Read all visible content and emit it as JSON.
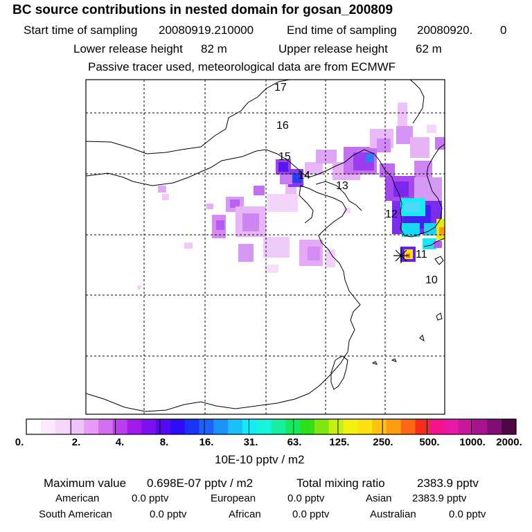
{
  "header": {
    "title": "BC  source contributions in nested domain for gosan_200809",
    "start_label": "Start time of sampling",
    "start_value": "20080919.210000",
    "end_label": "End time of sampling",
    "end_value": "20080920.",
    "end_suffix": "0",
    "lower_label": "Lower release height",
    "lower_value": "82 m",
    "upper_label": "Upper release height",
    "upper_value": "62 m",
    "note": "Passive tracer used, meteorological data are from ECMWF"
  },
  "map": {
    "day_labels": [
      "17",
      "16",
      "15",
      "14",
      "13",
      "12",
      "11",
      "10"
    ]
  },
  "colorbar": {
    "colors": [
      "#ffffff",
      "#fbe9fd",
      "#f6d7fb",
      "#f0c2fa",
      "#e69cf6",
      "#d46ff2",
      "#bd3ef0",
      "#a21aed",
      "#7a10ee",
      "#5309f2",
      "#2e0cf5",
      "#1a33f6",
      "#1c64f7",
      "#1b92f8",
      "#1ac1f9",
      "#18eaf5",
      "#17f4d9",
      "#17ee9f",
      "#15e860",
      "#2fdf17",
      "#82e612",
      "#c8ef11",
      "#f2f210",
      "#fee111",
      "#ffc210",
      "#ff9d12",
      "#fd6715",
      "#f72c1f",
      "#f5138c",
      "#e818a9",
      "#c8169d",
      "#a6138e",
      "#7f0d72",
      "#4d0743"
    ],
    "tick_labels": [
      "0.",
      "2.",
      "4.",
      "8.",
      "16.",
      "31.",
      "63.",
      "125.",
      "250.",
      "500.",
      "1000.",
      "2000."
    ],
    "units": "10E-10 pptv / m2"
  },
  "stats": {
    "max_label": "Maximum value",
    "max_value": "0.698E-07 pptv / m2",
    "total_label": "Total mixing ratio",
    "total_value": "2383.9 pptv",
    "regions": [
      {
        "name": "American",
        "value": "0.0 pptv"
      },
      {
        "name": "European",
        "value": "0.0 pptv"
      },
      {
        "name": "Asian",
        "value": "2383.9 pptv"
      },
      {
        "name": "South American",
        "value": "0.0 pptv"
      },
      {
        "name": "African",
        "value": "0.0 pptv"
      },
      {
        "name": "Australian",
        "value": "0.0 pptv"
      }
    ]
  }
}
